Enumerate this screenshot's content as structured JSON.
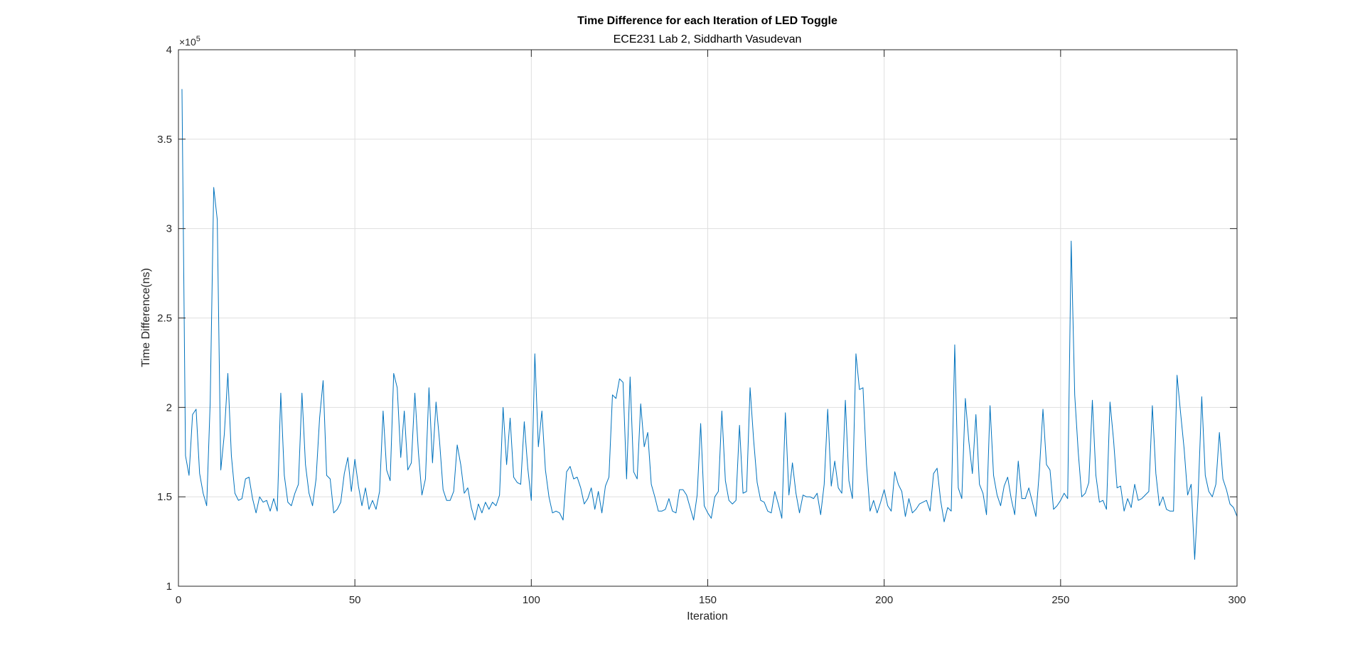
{
  "chart_data": {
    "type": "line",
    "title": "Time Difference for each Iteration of LED Toggle",
    "subtitle": "ECE231 Lab 2, Siddharth Vasudevan",
    "xlabel": "Iteration",
    "ylabel": "Time Difference(ns)",
    "y_exponent_label": "×10",
    "y_exponent_power": "5",
    "xlim": [
      0,
      300
    ],
    "ylim": [
      1,
      4
    ],
    "y_scale_note": "values in units of 1e5 ns",
    "grid": true,
    "line_color": "#0072BD",
    "xticks": [
      "0",
      "50",
      "100",
      "150",
      "200",
      "250",
      "300"
    ],
    "yticks": [
      "1",
      "1.5",
      "2",
      "2.5",
      "3",
      "3.5",
      "4"
    ],
    "xtick_values": [
      0,
      50,
      100,
      150,
      200,
      250,
      300
    ],
    "ytick_values": [
      1,
      1.5,
      2,
      2.5,
      3,
      3.5,
      4
    ],
    "x_start": 1,
    "values": [
      3.78,
      1.73,
      1.62,
      1.96,
      1.99,
      1.63,
      1.52,
      1.45,
      2.03,
      3.23,
      3.05,
      1.65,
      1.85,
      2.19,
      1.73,
      1.52,
      1.48,
      1.49,
      1.6,
      1.61,
      1.49,
      1.41,
      1.5,
      1.47,
      1.48,
      1.42,
      1.49,
      1.42,
      2.08,
      1.62,
      1.47,
      1.45,
      1.52,
      1.57,
      2.08,
      1.68,
      1.52,
      1.45,
      1.6,
      1.94,
      2.15,
      1.62,
      1.6,
      1.41,
      1.43,
      1.47,
      1.63,
      1.72,
      1.53,
      1.71,
      1.56,
      1.45,
      1.55,
      1.43,
      1.48,
      1.43,
      1.53,
      1.98,
      1.65,
      1.59,
      2.19,
      2.11,
      1.72,
      1.98,
      1.65,
      1.69,
      2.08,
      1.75,
      1.51,
      1.6,
      2.11,
      1.69,
      2.03,
      1.81,
      1.54,
      1.48,
      1.48,
      1.53,
      1.79,
      1.68,
      1.52,
      1.55,
      1.44,
      1.37,
      1.46,
      1.41,
      1.47,
      1.43,
      1.47,
      1.45,
      1.51,
      2.0,
      1.68,
      1.94,
      1.61,
      1.58,
      1.57,
      1.92,
      1.66,
      1.48,
      2.3,
      1.78,
      1.98,
      1.65,
      1.5,
      1.41,
      1.42,
      1.41,
      1.37,
      1.64,
      1.67,
      1.6,
      1.61,
      1.55,
      1.46,
      1.49,
      1.55,
      1.43,
      1.53,
      1.41,
      1.56,
      1.61,
      2.07,
      2.05,
      2.16,
      2.14,
      1.6,
      2.17,
      1.64,
      1.6,
      2.02,
      1.78,
      1.86,
      1.57,
      1.5,
      1.42,
      1.42,
      1.43,
      1.49,
      1.42,
      1.41,
      1.54,
      1.54,
      1.51,
      1.44,
      1.37,
      1.51,
      1.91,
      1.45,
      1.41,
      1.38,
      1.5,
      1.53,
      1.98,
      1.59,
      1.48,
      1.46,
      1.48,
      1.9,
      1.52,
      1.53,
      2.11,
      1.82,
      1.58,
      1.48,
      1.47,
      1.42,
      1.41,
      1.53,
      1.46,
      1.38,
      1.97,
      1.51,
      1.69,
      1.52,
      1.41,
      1.51,
      1.5,
      1.5,
      1.49,
      1.52,
      1.4,
      1.57,
      1.99,
      1.56,
      1.7,
      1.55,
      1.52,
      2.04,
      1.59,
      1.49,
      2.3,
      2.1,
      2.11,
      1.68,
      1.42,
      1.48,
      1.41,
      1.47,
      1.54,
      1.45,
      1.42,
      1.64,
      1.57,
      1.53,
      1.39,
      1.49,
      1.41,
      1.43,
      1.46,
      1.47,
      1.48,
      1.42,
      1.63,
      1.66,
      1.48,
      1.36,
      1.44,
      1.42,
      2.35,
      1.55,
      1.49,
      2.05,
      1.81,
      1.63,
      1.96,
      1.57,
      1.52,
      1.4,
      2.01,
      1.62,
      1.51,
      1.45,
      1.56,
      1.61,
      1.49,
      1.4,
      1.7,
      1.49,
      1.49,
      1.55,
      1.47,
      1.39,
      1.65,
      1.99,
      1.68,
      1.65,
      1.43,
      1.45,
      1.48,
      1.52,
      1.49,
      2.93,
      2.07,
      1.75,
      1.5,
      1.52,
      1.58,
      2.04,
      1.62,
      1.47,
      1.48,
      1.43,
      2.03,
      1.82,
      1.55,
      1.56,
      1.42,
      1.49,
      1.44,
      1.57,
      1.48,
      1.49,
      1.51,
      1.53,
      2.01,
      1.63,
      1.45,
      1.5,
      1.43,
      1.42,
      1.42,
      2.18,
      1.97,
      1.77,
      1.51,
      1.57,
      1.15,
      1.52,
      2.06,
      1.62,
      1.53,
      1.5,
      1.57,
      1.86,
      1.6,
      1.54,
      1.46,
      1.44,
      1.39
    ]
  }
}
